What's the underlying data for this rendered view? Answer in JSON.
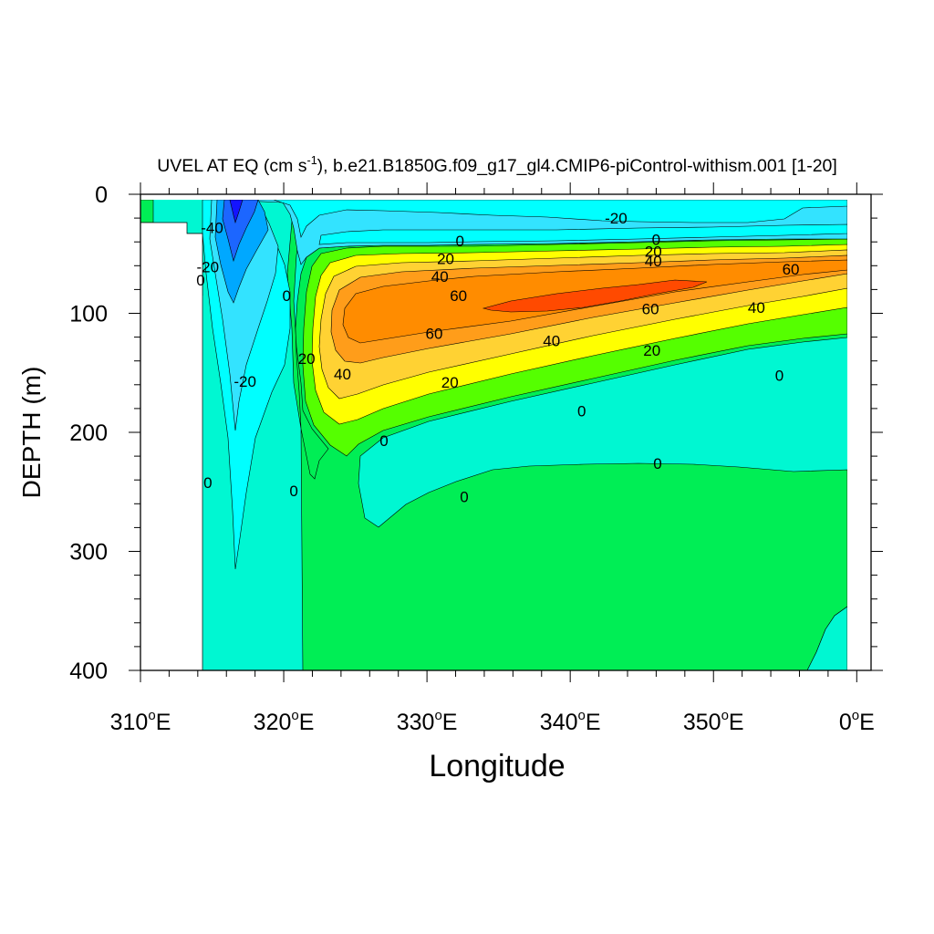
{
  "chart_data": {
    "type": "contour",
    "title_prefix": "UVEL AT EQ (cm s",
    "title_exponent": "-1",
    "title_suffix": "), b.e21.B1850G.f09_g17_gl4.CMIP6-piControl-withism.001 [1-20]",
    "xlabel": "Longitude",
    "ylabel": "DEPTH (m)",
    "degree_symbol": "o",
    "xlim": [
      310,
      361
    ],
    "ylim": [
      0,
      400
    ],
    "x_ticks": [
      {
        "value": 310,
        "num": "310",
        "unit": "E"
      },
      {
        "value": 320,
        "num": "320",
        "unit": "E"
      },
      {
        "value": 330,
        "num": "330",
        "unit": "E"
      },
      {
        "value": 340,
        "num": "340",
        "unit": "E"
      },
      {
        "value": 350,
        "num": "350",
        "unit": "E"
      },
      {
        "value": 360,
        "num": "0",
        "unit": "E"
      }
    ],
    "y_ticks": [
      {
        "value": 0,
        "label": "0"
      },
      {
        "value": 100,
        "label": "100"
      },
      {
        "value": 200,
        "label": "200"
      },
      {
        "value": 300,
        "label": "300"
      },
      {
        "value": 400,
        "label": "400"
      }
    ],
    "contour_levels_cm_s": [
      -50,
      -40,
      -30,
      -20,
      -10,
      0,
      10,
      20,
      30,
      40,
      50,
      60,
      70
    ],
    "fill_colors": {
      "lt_-40": "#1414ff",
      "-40_-30": "#1c66ff",
      "-30_-20": "#00a8ff",
      "-20_-10": "#33e3ff",
      "-10_0": "#00ffff",
      "0_10": "#00f7d2",
      "10_20": "#00ee55",
      "20_30": "#55ff00",
      "30_40": "#ffff00",
      "40_50": "#ffd233",
      "50_60": "#ff9d1a",
      "60_70": "#ff8c00",
      "gt_70": "#ff4a00"
    },
    "contour_labels": [
      {
        "text": "-20",
        "lon": 343.2,
        "depth": 20
      },
      {
        "text": "0",
        "lon": 332.3,
        "depth": 39
      },
      {
        "text": "0",
        "lon": 346.0,
        "depth": 38
      },
      {
        "text": "20",
        "lon": 331.3,
        "depth": 54
      },
      {
        "text": "20",
        "lon": 345.8,
        "depth": 48
      },
      {
        "text": "40",
        "lon": 345.8,
        "depth": 56
      },
      {
        "text": "60",
        "lon": 355.4,
        "depth": 63
      },
      {
        "text": "40",
        "lon": 330.9,
        "depth": 69
      },
      {
        "text": "60",
        "lon": 332.2,
        "depth": 85
      },
      {
        "text": "60",
        "lon": 345.6,
        "depth": 96
      },
      {
        "text": "40",
        "lon": 353.0,
        "depth": 95
      },
      {
        "text": "60",
        "lon": 330.5,
        "depth": 117
      },
      {
        "text": "40",
        "lon": 338.7,
        "depth": 123
      },
      {
        "text": "20",
        "lon": 345.7,
        "depth": 131
      },
      {
        "text": "0",
        "lon": 354.6,
        "depth": 152
      },
      {
        "text": "40",
        "lon": 324.1,
        "depth": 151
      },
      {
        "text": "20",
        "lon": 331.6,
        "depth": 158
      },
      {
        "text": "20",
        "lon": 321.6,
        "depth": 138
      },
      {
        "text": "0",
        "lon": 320.2,
        "depth": 85
      },
      {
        "text": "-40",
        "lon": 315.0,
        "depth": 28
      },
      {
        "text": "-20",
        "lon": 314.7,
        "depth": 61
      },
      {
        "text": "0",
        "lon": 314.2,
        "depth": 72
      },
      {
        "text": "-20",
        "lon": 317.3,
        "depth": 157
      },
      {
        "text": "0",
        "lon": 340.8,
        "depth": 182
      },
      {
        "text": "0",
        "lon": 327.0,
        "depth": 207
      },
      {
        "text": "0",
        "lon": 314.7,
        "depth": 242
      },
      {
        "text": "0",
        "lon": 320.7,
        "depth": 249
      },
      {
        "text": "0",
        "lon": 346.1,
        "depth": 226
      },
      {
        "text": "0",
        "lon": 332.6,
        "depth": 254
      }
    ]
  }
}
